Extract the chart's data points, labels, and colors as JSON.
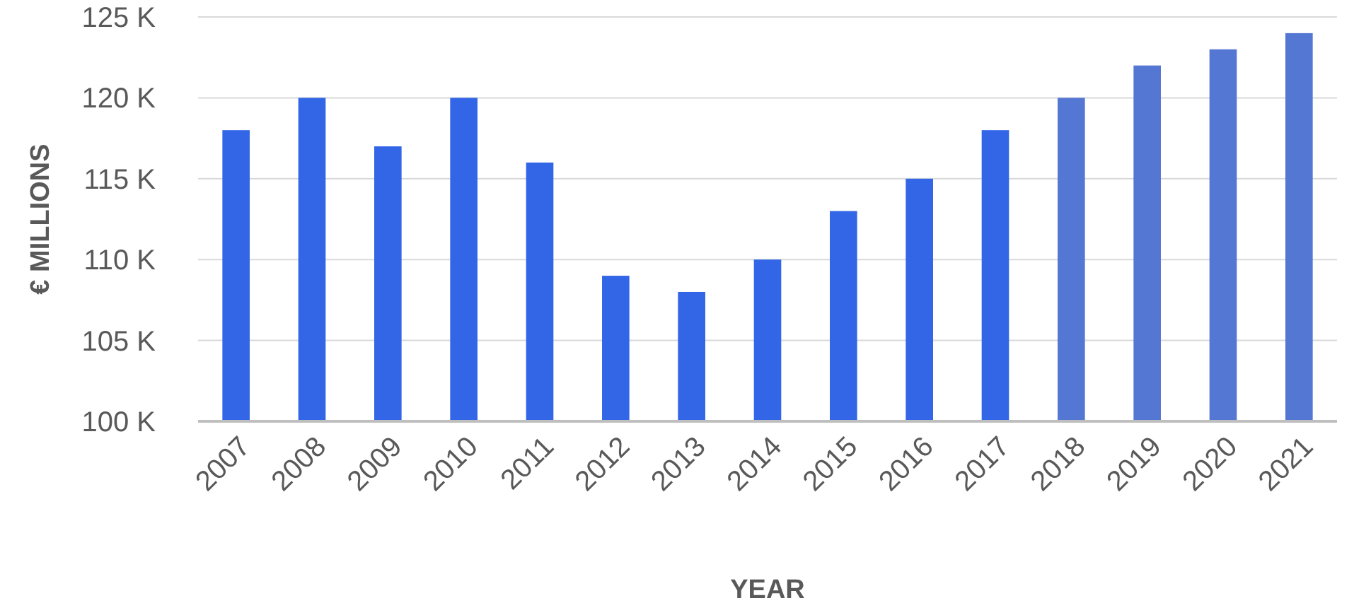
{
  "chart_data": {
    "type": "bar",
    "xlabel": "YEAR",
    "ylabel": "€ MILLIONS",
    "categories": [
      "2007",
      "2008",
      "2009",
      "2010",
      "2011",
      "2012",
      "2013",
      "2014",
      "2015",
      "2016",
      "2017",
      "2018",
      "2019",
      "2020",
      "2021"
    ],
    "values": [
      118000,
      120000,
      117000,
      120000,
      116000,
      109000,
      108000,
      110000,
      113000,
      115000,
      118000,
      120000,
      122000,
      123000,
      124000
    ],
    "colors": [
      "#3366e6",
      "#3366e6",
      "#3366e6",
      "#3366e6",
      "#3366e6",
      "#3366e6",
      "#3366e6",
      "#3366e6",
      "#3366e6",
      "#3366e6",
      "#3366e6",
      "#5577d4",
      "#5577d4",
      "#5577d4",
      "#5577d4"
    ],
    "ylim": [
      100000,
      125000
    ],
    "yticks": [
      {
        "value": 100000,
        "label": "100 K"
      },
      {
        "value": 105000,
        "label": "105 K"
      },
      {
        "value": 110000,
        "label": "110 K"
      },
      {
        "value": 115000,
        "label": "115 K"
      },
      {
        "value": 120000,
        "label": "120 K"
      },
      {
        "value": 125000,
        "label": "125 K"
      }
    ],
    "grid": "y"
  }
}
